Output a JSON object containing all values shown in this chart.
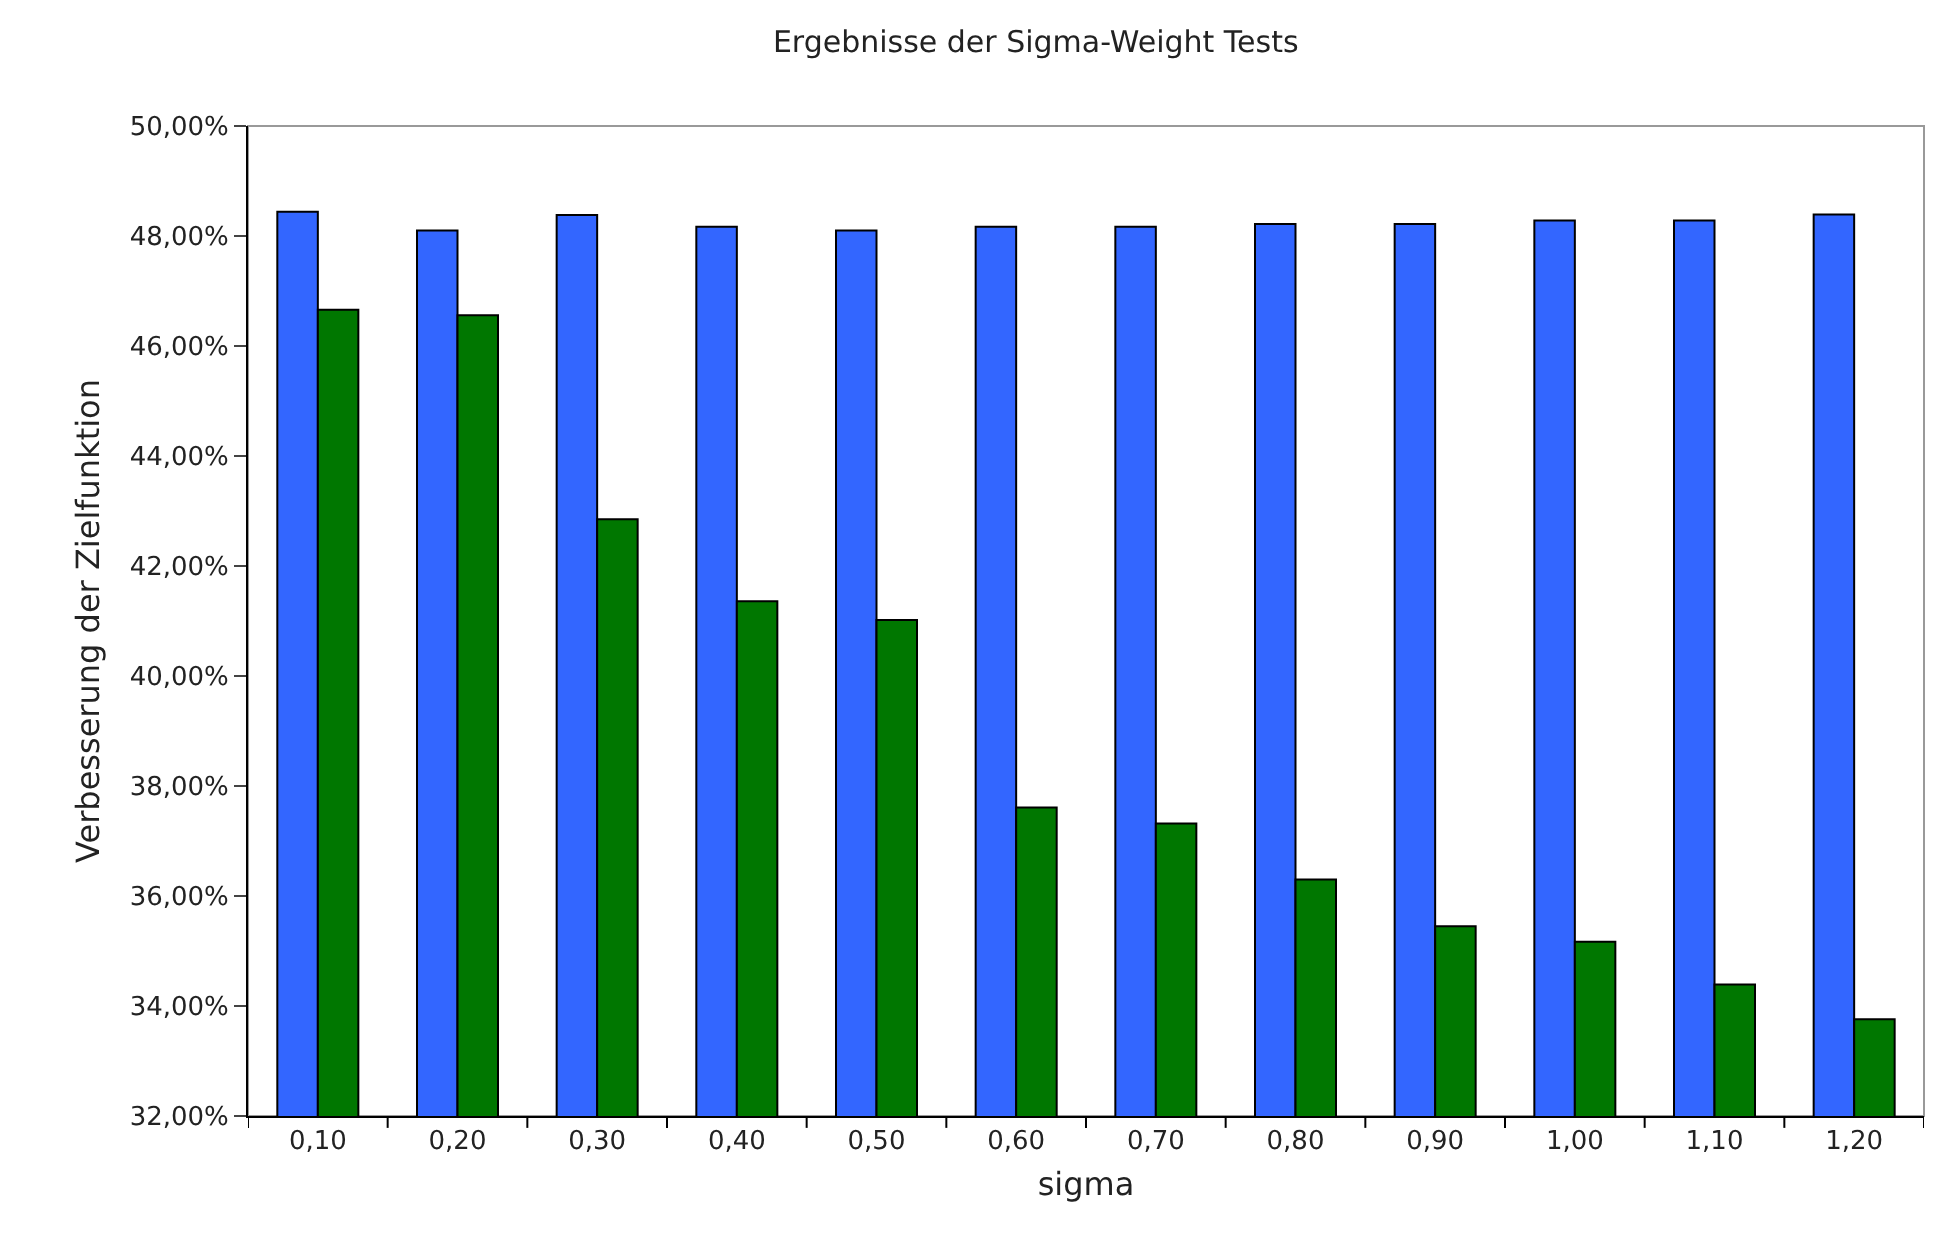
{
  "chart_data": {
    "type": "bar",
    "title": "Ergebnisse der Sigma-Weight Tests",
    "xlabel": "sigma",
    "ylabel": "Verbesserung der Zielfunktion",
    "categories": [
      "0,10",
      "0,20",
      "0,30",
      "0,40",
      "0,50",
      "0,60",
      "0,70",
      "0,80",
      "0,90",
      "1,00",
      "1,10",
      "1,20"
    ],
    "series": [
      {
        "color": "#3366ff",
        "values": [
          48.44,
          48.1,
          48.38,
          48.17,
          48.1,
          48.17,
          48.17,
          48.22,
          48.22,
          48.28,
          48.28,
          48.39
        ]
      },
      {
        "color": "#007700",
        "values": [
          46.66,
          46.56,
          42.85,
          41.36,
          41.02,
          37.61,
          37.32,
          36.3,
          35.45,
          35.17,
          34.39,
          33.76
        ]
      }
    ],
    "ylim": [
      32,
      50
    ],
    "yticks": [
      {
        "value": 32,
        "label": "32,00%"
      },
      {
        "value": 34,
        "label": "34,00%"
      },
      {
        "value": 36,
        "label": "36,00%"
      },
      {
        "value": 38,
        "label": "38,00%"
      },
      {
        "value": 40,
        "label": "40,00%"
      },
      {
        "value": 42,
        "label": "42,00%"
      },
      {
        "value": 44,
        "label": "44,00%"
      },
      {
        "value": 46,
        "label": "46,00%"
      },
      {
        "value": 48,
        "label": "48,00%"
      },
      {
        "value": 50,
        "label": "50,00%"
      }
    ],
    "grid": false
  }
}
